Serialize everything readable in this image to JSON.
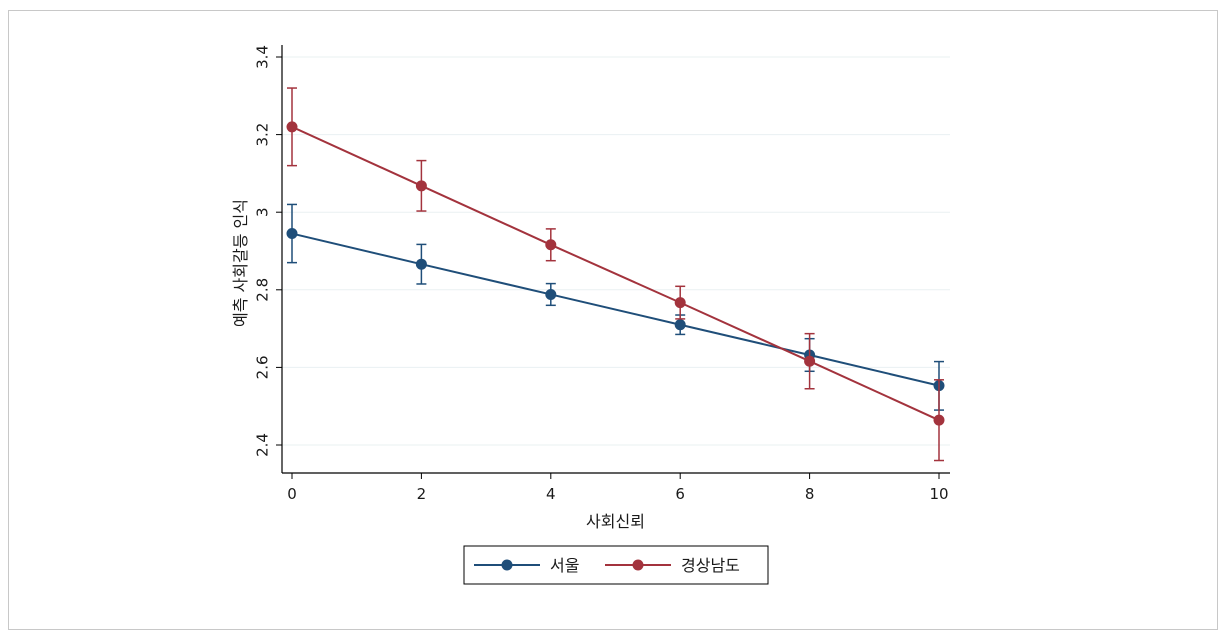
{
  "chart_data": {
    "type": "line",
    "title": "",
    "xlabel": "사회신뢰",
    "ylabel": "예측 사회갈등 인식",
    "x": [
      0,
      2,
      4,
      6,
      8,
      10
    ],
    "xlim": [
      0,
      10
    ],
    "ylim": [
      2.4,
      3.4
    ],
    "xticks": [
      "0",
      "2",
      "4",
      "6",
      "8",
      "10"
    ],
    "yticks": [
      "2.4",
      "2.6",
      "2.8",
      "3",
      "3.2",
      "3.4"
    ],
    "grid": true,
    "legend_position": "bottom",
    "error_bars": true,
    "series": [
      {
        "name": "서울",
        "color": "#1f4e79",
        "values": [
          2.945,
          2.866,
          2.788,
          2.71,
          2.632,
          2.553
        ],
        "ci_low": [
          2.87,
          2.815,
          2.76,
          2.685,
          2.59,
          2.49
        ],
        "ci_high": [
          3.02,
          2.917,
          2.816,
          2.735,
          2.674,
          2.615
        ]
      },
      {
        "name": "경상남도",
        "color": "#a3333d",
        "values": [
          3.22,
          3.068,
          2.916,
          2.767,
          2.616,
          2.464
        ],
        "ci_low": [
          3.12,
          3.003,
          2.875,
          2.725,
          2.545,
          2.36
        ],
        "ci_high": [
          3.32,
          3.133,
          2.957,
          2.809,
          2.687,
          2.568
        ]
      }
    ]
  }
}
